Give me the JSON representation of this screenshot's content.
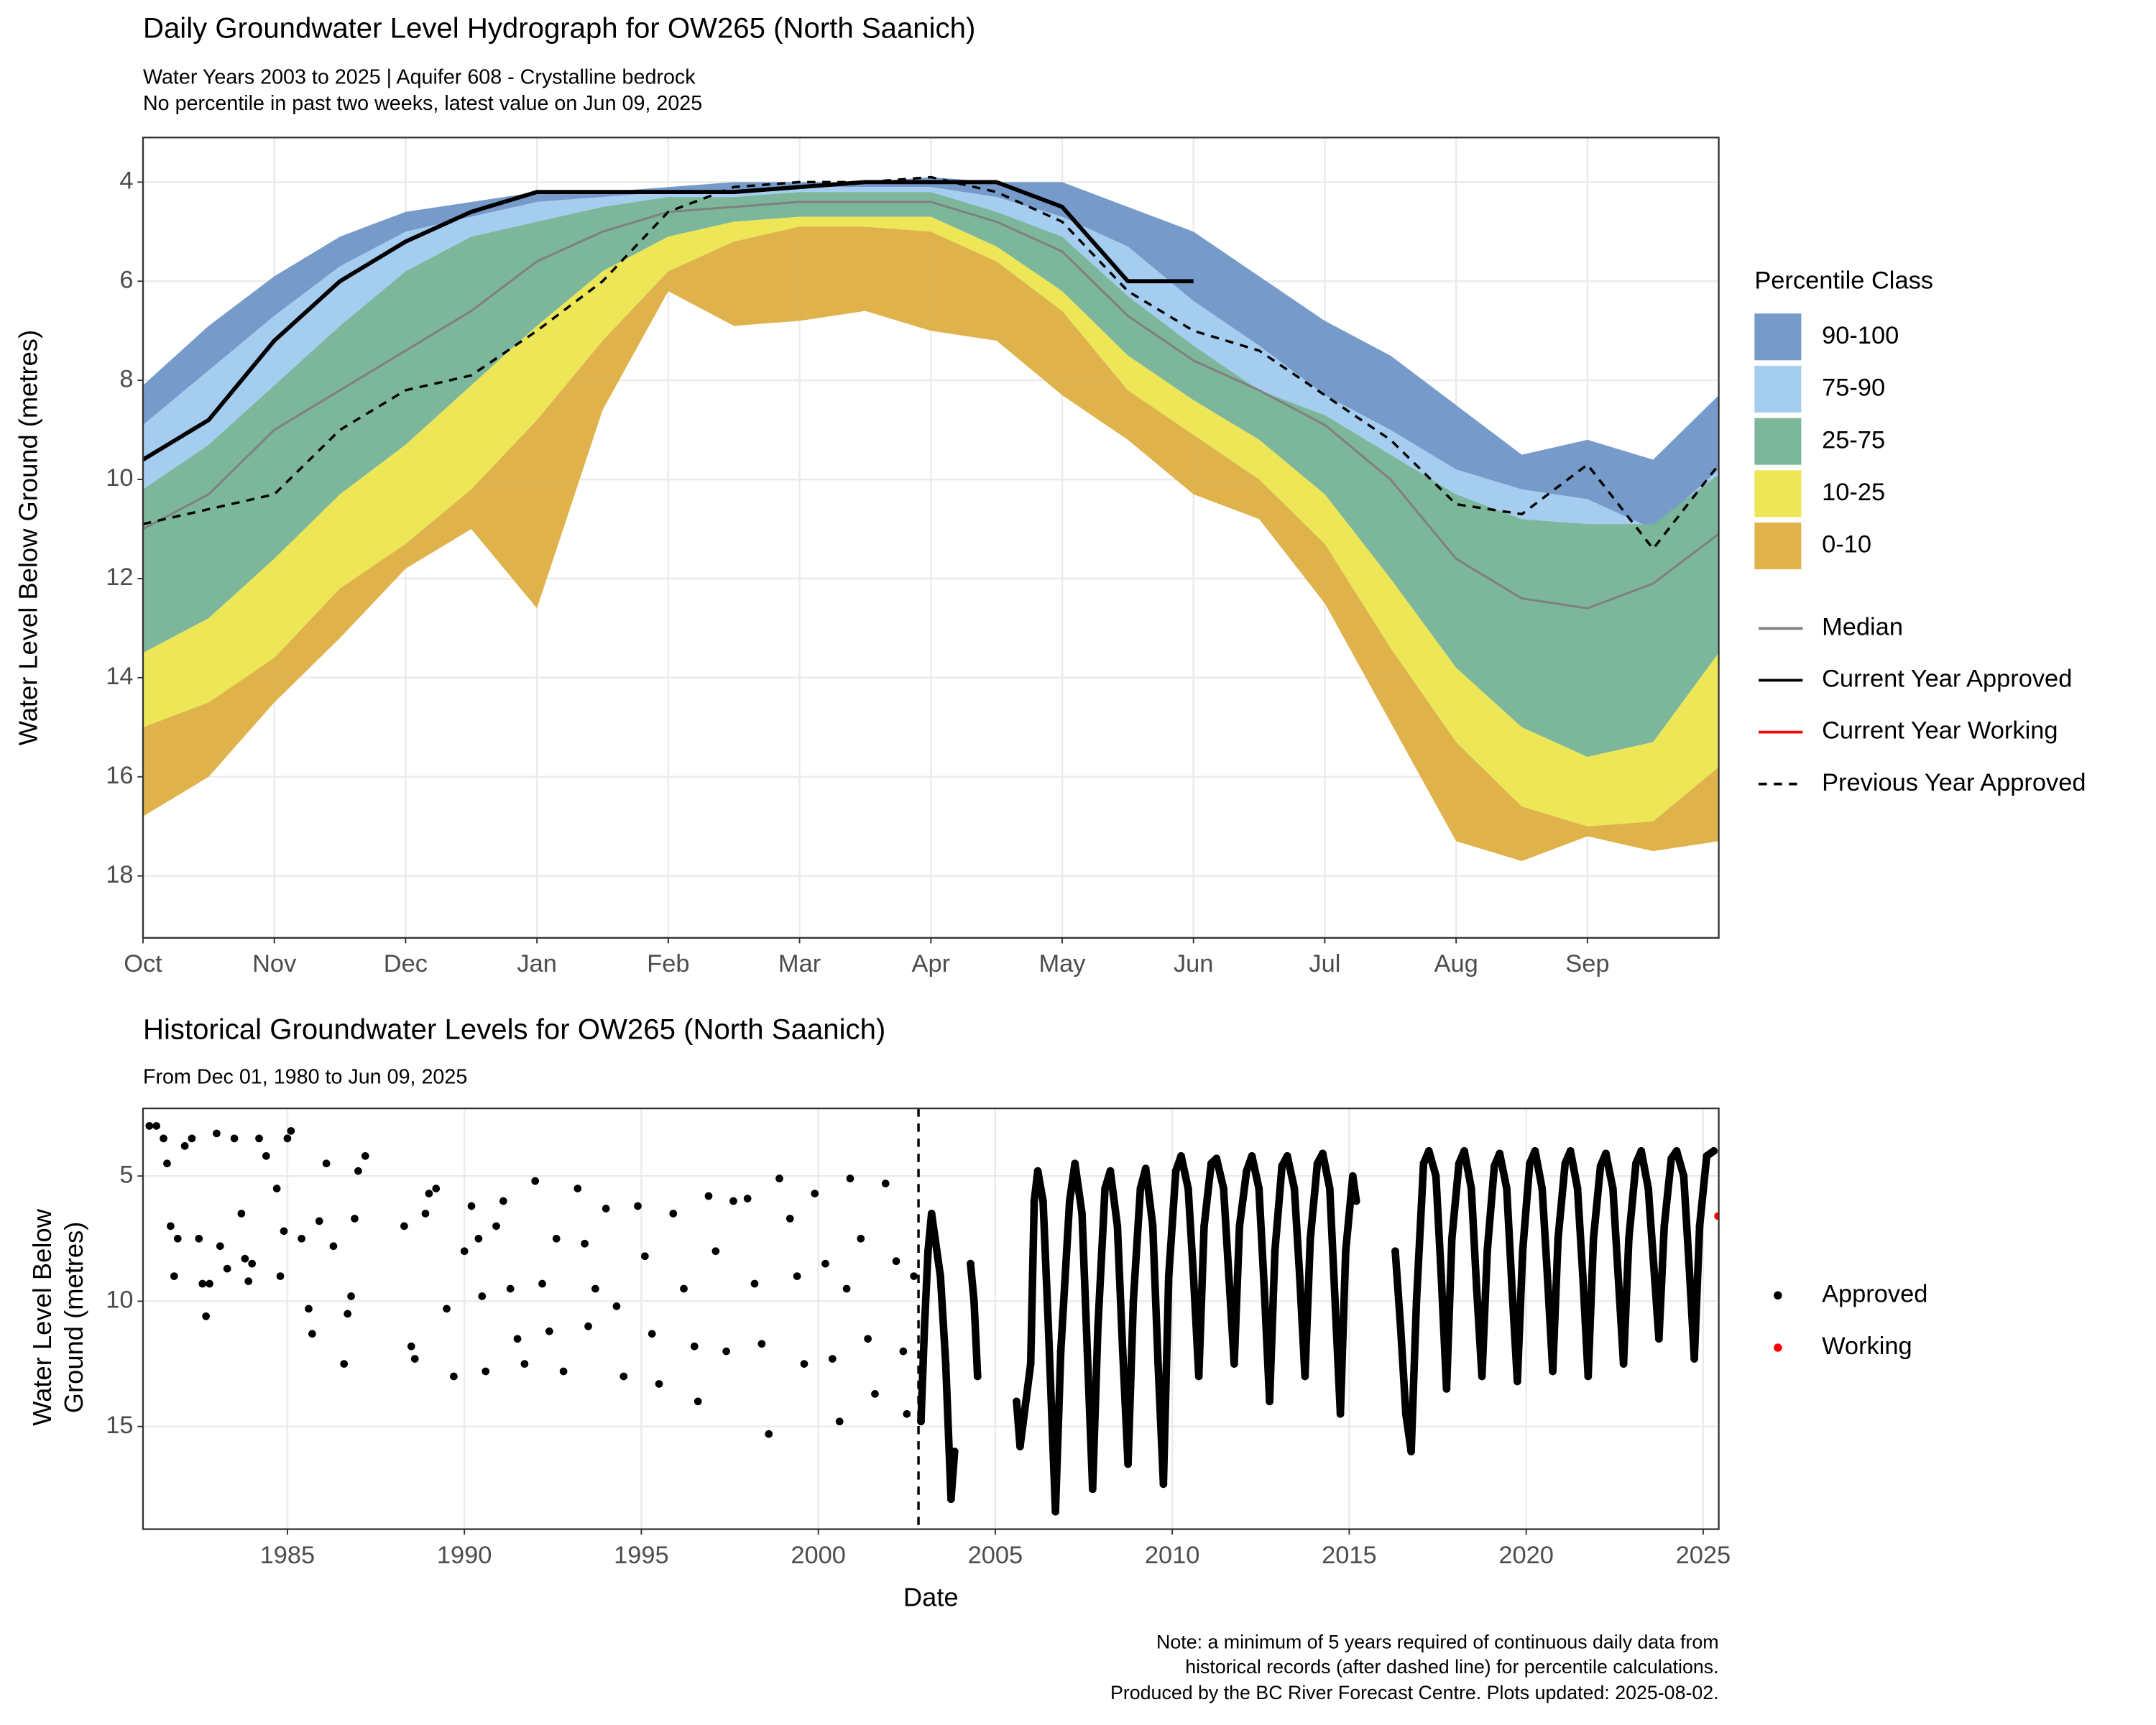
{
  "chart_data": [
    {
      "type": "band_line",
      "title": "Daily Groundwater Level Hydrograph for OW265 (North Saanich)",
      "subtitle": [
        "Water Years 2003 to 2025 | Aquifer 608 - Crystalline bedrock",
        "No percentile in past two weeks, latest value on Jun 09, 2025"
      ],
      "ylabel": "Water Level Below Ground (metres)",
      "legend_title": "Percentile Class",
      "xlim": [
        0,
        12
      ],
      "xticks": [
        {
          "value": 0,
          "label": "Oct"
        },
        {
          "value": 1,
          "label": "Nov"
        },
        {
          "value": 2,
          "label": "Dec"
        },
        {
          "value": 3,
          "label": "Jan"
        },
        {
          "value": 4,
          "label": "Feb"
        },
        {
          "value": 5,
          "label": "Mar"
        },
        {
          "value": 6,
          "label": "Apr"
        },
        {
          "value": 7,
          "label": "May"
        },
        {
          "value": 8,
          "label": "Jun"
        },
        {
          "value": 9,
          "label": "Jul"
        },
        {
          "value": 10,
          "label": "Aug"
        },
        {
          "value": 11,
          "label": "Sep"
        }
      ],
      "ylim": [
        3.1,
        19.25
      ],
      "y_reversed": true,
      "yticks": [
        4,
        6,
        8,
        10,
        12,
        14,
        16,
        18
      ],
      "grid": true,
      "x": [
        0,
        0.5,
        1,
        1.5,
        2,
        2.5,
        3,
        3.5,
        4,
        4.5,
        5,
        5.5,
        6,
        6.5,
        7,
        7.5,
        8,
        8.5,
        9,
        9.5,
        10,
        10.5,
        11,
        11.5,
        12
      ],
      "bands": [
        {
          "name": "90-100",
          "color": "#6a93c7",
          "from": [
            8.1,
            6.9,
            5.9,
            5.1,
            4.6,
            4.4,
            4.2,
            4.2,
            4.1,
            4.0,
            4.0,
            4.0,
            3.9,
            4.0,
            4.0,
            4.5,
            5.0,
            5.9,
            6.8,
            7.5,
            8.5,
            9.5,
            9.2,
            9.6,
            8.3
          ],
          "to": [
            8.9,
            7.8,
            6.7,
            5.7,
            5.0,
            4.7,
            4.4,
            4.3,
            4.2,
            4.2,
            4.1,
            4.1,
            4.1,
            4.3,
            4.7,
            5.3,
            6.4,
            7.3,
            8.3,
            9.0,
            9.8,
            10.2,
            10.4,
            11.0,
            9.8
          ]
        },
        {
          "name": "75-90",
          "color": "#9dc9ef",
          "from": [
            8.9,
            7.8,
            6.7,
            5.7,
            5.0,
            4.7,
            4.4,
            4.3,
            4.2,
            4.2,
            4.1,
            4.1,
            4.1,
            4.3,
            4.7,
            5.3,
            6.4,
            7.3,
            8.3,
            9.0,
            9.8,
            10.2,
            10.4,
            11.0,
            9.8
          ],
          "to": [
            10.2,
            9.3,
            8.1,
            6.9,
            5.8,
            5.1,
            4.8,
            4.5,
            4.3,
            4.3,
            4.2,
            4.2,
            4.2,
            4.6,
            5.1,
            6.3,
            7.3,
            8.2,
            8.7,
            9.5,
            10.3,
            10.8,
            10.9,
            10.9,
            9.9
          ]
        },
        {
          "name": "25-75",
          "color": "#72b193",
          "from": [
            10.2,
            9.3,
            8.1,
            6.9,
            5.8,
            5.1,
            4.8,
            4.5,
            4.3,
            4.3,
            4.2,
            4.2,
            4.2,
            4.6,
            5.1,
            6.3,
            7.3,
            8.2,
            8.7,
            9.5,
            10.3,
            10.8,
            10.9,
            10.9,
            9.9
          ],
          "to": [
            13.5,
            12.8,
            11.6,
            10.3,
            9.3,
            8.1,
            6.9,
            5.8,
            5.1,
            4.8,
            4.7,
            4.7,
            4.7,
            5.3,
            6.2,
            7.5,
            8.4,
            9.2,
            10.3,
            12.0,
            13.8,
            15.0,
            15.6,
            15.3,
            13.5
          ]
        },
        {
          "name": "10-25",
          "color": "#ebe449",
          "from": [
            13.5,
            12.8,
            11.6,
            10.3,
            9.3,
            8.1,
            6.9,
            5.8,
            5.1,
            4.8,
            4.7,
            4.7,
            4.7,
            5.3,
            6.2,
            7.5,
            8.4,
            9.2,
            10.3,
            12.0,
            13.8,
            15.0,
            15.6,
            15.3,
            13.5
          ],
          "to": [
            15.0,
            14.5,
            13.6,
            12.2,
            11.3,
            10.2,
            8.8,
            7.2,
            5.8,
            5.2,
            4.9,
            4.9,
            5.0,
            5.6,
            6.6,
            8.2,
            9.1,
            10.0,
            11.3,
            13.4,
            15.3,
            16.6,
            17.0,
            16.9,
            15.8
          ]
        },
        {
          "name": "0-10",
          "color": "#dcab3d",
          "from": [
            15.0,
            14.5,
            13.6,
            12.2,
            11.3,
            10.2,
            8.8,
            7.2,
            5.8,
            5.2,
            4.9,
            4.9,
            5.0,
            5.6,
            6.6,
            8.2,
            9.1,
            10.0,
            11.3,
            13.4,
            15.3,
            16.6,
            17.0,
            16.9,
            15.8
          ],
          "to": [
            16.8,
            16.0,
            14.5,
            13.2,
            11.8,
            11.0,
            12.6,
            8.6,
            6.2,
            6.9,
            6.8,
            6.6,
            7.0,
            7.2,
            8.3,
            9.2,
            10.3,
            10.8,
            12.5,
            14.9,
            17.3,
            17.7,
            17.2,
            17.5,
            17.3
          ]
        }
      ],
      "series": [
        {
          "name": "Median",
          "color": "#808080",
          "dash": false,
          "values": [
            11.0,
            10.3,
            9.0,
            8.2,
            7.4,
            6.6,
            5.6,
            5.0,
            4.6,
            4.5,
            4.4,
            4.4,
            4.4,
            4.8,
            5.4,
            6.7,
            7.6,
            8.2,
            8.9,
            10.0,
            11.6,
            12.4,
            12.6,
            12.1,
            11.1
          ]
        },
        {
          "name": "Current Year Approved",
          "color": "#000000",
          "dash": false,
          "values": [
            9.6,
            8.8,
            7.2,
            6.0,
            5.2,
            4.6,
            4.2,
            4.2,
            4.2,
            4.2,
            4.1,
            4.0,
            4.0,
            4.0,
            4.5,
            6.0,
            6.0,
            null,
            null,
            null,
            null,
            null,
            null,
            null,
            null
          ]
        },
        {
          "name": "Current Year Working",
          "color": "#ff0000",
          "dash": false,
          "values": [
            null,
            null,
            null,
            null,
            null,
            null,
            null,
            null,
            null,
            null,
            null,
            null,
            null,
            null,
            null,
            null,
            null,
            null,
            null,
            null,
            null,
            null,
            null,
            null,
            null
          ]
        },
        {
          "name": "Previous Year Approved",
          "color": "#000000",
          "dash": true,
          "values": [
            10.9,
            10.6,
            10.3,
            9.0,
            8.2,
            7.9,
            7.0,
            6.0,
            4.6,
            4.1,
            4.0,
            4.0,
            3.9,
            4.2,
            4.8,
            6.2,
            7.0,
            7.4,
            8.3,
            9.2,
            10.5,
            10.7,
            9.7,
            11.4,
            9.7
          ]
        }
      ]
    },
    {
      "type": "scatter",
      "title": "Historical Groundwater Levels for OW265 (North Saanich)",
      "subtitle": "From Dec 01, 1980 to Jun 09, 2025",
      "xlabel": "Date",
      "ylabel": [
        "Water Level Below",
        "Ground (metres)"
      ],
      "xlim": [
        1980.92,
        2025.44
      ],
      "xticks": [
        1985,
        1990,
        1995,
        2000,
        2005,
        2010,
        2015,
        2020,
        2025
      ],
      "ylim": [
        2.3,
        19.1
      ],
      "y_reversed": true,
      "yticks": [
        5,
        10,
        15
      ],
      "grid": true,
      "vline": 2002.83,
      "note": [
        "Note: a minimum of 5 years required of continuous daily data from",
        "historical records (after dashed line) for percentile calculations.",
        "Produced by the BC River Forecast Centre. Plots updated: 2025-08-02."
      ],
      "series": [
        {
          "name": "Approved",
          "color": "#000000",
          "x": [
            1981.1,
            1981.3,
            1981.5,
            1981.6,
            1981.7,
            1981.8,
            1981.9,
            1982.1,
            1982.3,
            1982.5,
            1982.6,
            1982.7,
            1982.8,
            1983.0,
            1983.1,
            1983.3,
            1983.5,
            1983.7,
            1983.8,
            1983.9,
            1984.0,
            1984.2,
            1984.4,
            1984.7,
            1984.8,
            1984.9,
            1985.0,
            1985.1,
            1985.4,
            1985.6,
            1985.7,
            1985.9,
            1986.1,
            1986.3,
            1986.6,
            1986.7,
            1986.8,
            1986.9,
            1987.0,
            1987.2,
            1988.3,
            1988.5,
            1988.6,
            1988.9,
            1989.0,
            1989.2,
            1989.5,
            1989.7,
            1990.0,
            1990.2,
            1990.4,
            1990.5,
            1990.6,
            1990.9,
            1991.1,
            1991.3,
            1991.5,
            1991.7,
            1992.0,
            1992.2,
            1992.4,
            1992.6,
            1992.8,
            1993.2,
            1993.4,
            1993.5,
            1993.7,
            1994.0,
            1994.3,
            1994.5,
            1994.9,
            1995.1,
            1995.3,
            1995.5,
            1995.9,
            1996.2,
            1996.5,
            1996.6,
            1996.9,
            1997.1,
            1997.4,
            1997.6,
            1998.0,
            1998.2,
            1998.4,
            1998.6,
            1998.9,
            1999.2,
            1999.4,
            1999.6,
            1999.9,
            2000.2,
            2000.4,
            2000.6,
            2000.8,
            2000.9,
            2001.2,
            2001.4,
            2001.6,
            2001.9,
            2002.2,
            2002.4,
            2002.5,
            2002.7,
            2002.9,
            2003.0,
            2003.1,
            2003.2,
            2003.3,
            2003.45,
            2003.6,
            2003.75,
            2003.85,
            2004.3,
            2004.4,
            2004.5,
            2005.6,
            2005.7,
            2006.0,
            2006.1,
            2006.2,
            2006.35,
            2006.5,
            2006.7,
            2006.85,
            2007.1,
            2007.25,
            2007.45,
            2007.6,
            2007.75,
            2007.9,
            2008.1,
            2008.25,
            2008.45,
            2008.6,
            2008.75,
            2008.9,
            2009.1,
            2009.25,
            2009.45,
            2009.6,
            2009.75,
            2009.9,
            2010.1,
            2010.25,
            2010.45,
            2010.6,
            2010.75,
            2010.9,
            2011.1,
            2011.25,
            2011.45,
            2011.6,
            2011.75,
            2011.9,
            2012.1,
            2012.25,
            2012.45,
            2012.6,
            2012.75,
            2012.9,
            2013.1,
            2013.25,
            2013.45,
            2013.6,
            2013.75,
            2013.9,
            2014.1,
            2014.25,
            2014.45,
            2014.6,
            2014.75,
            2014.9,
            2015.1,
            2015.2,
            2016.3,
            2016.45,
            2016.6,
            2016.75,
            2016.9,
            2017.1,
            2017.25,
            2017.45,
            2017.6,
            2017.75,
            2017.9,
            2018.1,
            2018.25,
            2018.45,
            2018.6,
            2018.75,
            2018.9,
            2019.1,
            2019.25,
            2019.45,
            2019.6,
            2019.75,
            2019.9,
            2020.1,
            2020.25,
            2020.45,
            2020.6,
            2020.75,
            2020.9,
            2021.1,
            2021.25,
            2021.45,
            2021.6,
            2021.75,
            2021.9,
            2022.1,
            2022.25,
            2022.45,
            2022.6,
            2022.75,
            2022.9,
            2023.1,
            2023.25,
            2023.45,
            2023.6,
            2023.75,
            2023.9,
            2024.1,
            2024.25,
            2024.45,
            2024.6,
            2024.75,
            2024.9,
            2025.1,
            2025.3
          ],
          "values": [
            3.0,
            3.0,
            3.5,
            4.5,
            7.0,
            9.0,
            7.5,
            3.8,
            3.5,
            7.5,
            9.3,
            10.6,
            9.3,
            3.3,
            7.8,
            8.7,
            3.5,
            6.5,
            8.3,
            9.2,
            8.5,
            3.5,
            4.2,
            5.5,
            9.0,
            7.2,
            3.5,
            3.2,
            7.5,
            10.3,
            11.3,
            6.8,
            4.5,
            7.8,
            12.5,
            10.5,
            9.8,
            6.7,
            4.8,
            4.2,
            7.0,
            11.8,
            12.3,
            6.5,
            5.7,
            5.5,
            10.3,
            13.0,
            8.0,
            6.2,
            7.5,
            9.8,
            12.8,
            7.0,
            6.0,
            9.5,
            11.5,
            12.5,
            5.2,
            9.3,
            11.2,
            7.5,
            12.8,
            5.5,
            7.7,
            11.0,
            9.5,
            6.3,
            10.2,
            13.0,
            6.2,
            8.2,
            11.3,
            13.3,
            6.5,
            9.5,
            11.8,
            14.0,
            5.8,
            8.0,
            12.0,
            6.0,
            5.9,
            9.3,
            11.7,
            15.3,
            5.1,
            6.7,
            9.0,
            12.5,
            5.7,
            8.5,
            12.3,
            14.8,
            9.5,
            5.1,
            7.5,
            11.5,
            13.7,
            5.3,
            8.4,
            12.0,
            14.5,
            9.0,
            14.8,
            11,
            8,
            6.5,
            7.5,
            9,
            12.5,
            17.9,
            16,
            8.5,
            10,
            13,
            14,
            15.8,
            12.5,
            6,
            4.8,
            6,
            11,
            18.4,
            12,
            6,
            4.5,
            6.5,
            12,
            17.5,
            11,
            5.5,
            4.8,
            7,
            12,
            16.5,
            10,
            5.5,
            4.7,
            7,
            12.5,
            17.3,
            9,
            4.8,
            4.2,
            5.5,
            9,
            13,
            7,
            4.5,
            4.3,
            5.5,
            9,
            12.5,
            7,
            4.8,
            4.2,
            5.5,
            9.5,
            14,
            8,
            4.6,
            4.2,
            5.5,
            9,
            13,
            7.5,
            4.5,
            4.1,
            5.5,
            10,
            14.5,
            8,
            5,
            6,
            8,
            11,
            14.5,
            16,
            10,
            4.5,
            4.0,
            5,
            9,
            13.5,
            7.5,
            4.5,
            4.0,
            5.5,
            9.5,
            13,
            8,
            4.6,
            4.1,
            5.5,
            9.5,
            13.2,
            8,
            4.5,
            4.0,
            5.5,
            9,
            12.8,
            7.5,
            4.5,
            4.0,
            5.5,
            9,
            13,
            7.5,
            4.6,
            4.1,
            5.5,
            9,
            12.5,
            7.5,
            4.5,
            4.0,
            5.5,
            8.5,
            11.5,
            7,
            4.3,
            4.0,
            5,
            8.5,
            12.3,
            7,
            4.2,
            4.0
          ]
        },
        {
          "name": "Working",
          "color": "#ff0000",
          "x": [
            2025.42
          ],
          "values": [
            6.6
          ]
        }
      ]
    }
  ]
}
